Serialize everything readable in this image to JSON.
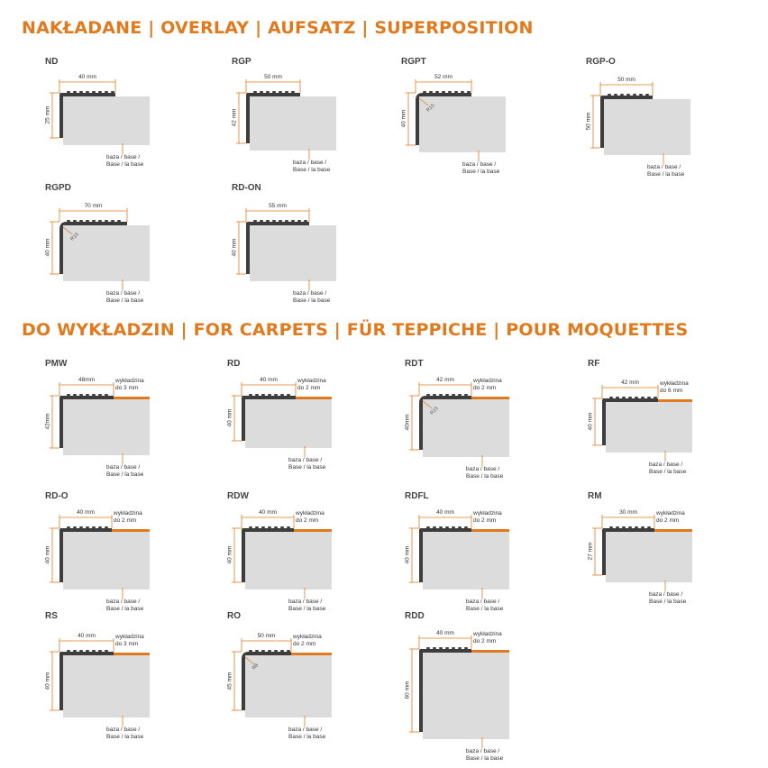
{
  "colors": {
    "accent": "#e07a1e",
    "profile": "#3d3d3d",
    "base": "#dcdcdc",
    "carpet": "#e07a1e"
  },
  "sections": {
    "overlay_title": "NAKŁADANE | OVERLAY | AUFSATZ | SUPERPOSITION",
    "carpets_title": "DO WYKŁADZIN | FOR CARPETS | FÜR TEPPICHE | POUR MOQUETTES"
  },
  "base_label": [
    "baza / base /",
    "Base / la base"
  ],
  "profiles": [
    {
      "code": "ND",
      "width": "40 mm",
      "height": "25 mm",
      "radius": "",
      "carpet": []
    },
    {
      "code": "RGP",
      "width": "50 mm",
      "height": "42 mm",
      "radius": "",
      "carpet": []
    },
    {
      "code": "RGPT",
      "width": "52 mm",
      "height": "40 mm",
      "radius": "R15",
      "carpet": []
    },
    {
      "code": "RGP-O",
      "width": "50 mm",
      "height": "50 mm",
      "radius": "",
      "carpet": []
    },
    {
      "code": "RGPD",
      "width": "70 mm",
      "height": "40 mm",
      "radius": "R15",
      "carpet": []
    },
    {
      "code": "RD-ON",
      "width": "55 mm",
      "height": "40 mm",
      "radius": "",
      "carpet": []
    },
    {
      "code": "PMW",
      "width": "48mm",
      "height": "42mm",
      "radius": "",
      "carpet": [
        "wykładzina",
        "do 3 mm"
      ]
    },
    {
      "code": "RD",
      "width": "40 mm",
      "height": "40 mm",
      "radius": "",
      "carpet": [
        "wykładzina",
        "do 2 mm"
      ]
    },
    {
      "code": "RDT",
      "width": "42 mm",
      "height": "40mm",
      "radius": "R15",
      "carpet": [
        "wykładzina",
        "do 2 mm"
      ]
    },
    {
      "code": "RF",
      "width": "42 mm",
      "height": "40 mm",
      "radius": "",
      "carpet": [
        "wykładzina",
        "do 6 mm"
      ]
    },
    {
      "code": "RD-O",
      "width": "40 mm",
      "height": "40 mm",
      "radius": "",
      "carpet": [
        "wykładzina",
        "do 2 mm"
      ]
    },
    {
      "code": "RDW",
      "width": "40 mm",
      "height": "40 mm",
      "radius": "",
      "carpet": [
        "wykładzina",
        "do 2 mm"
      ]
    },
    {
      "code": "RDFL",
      "width": "40 mm",
      "height": "40 mm",
      "radius": "",
      "carpet": [
        "wykładzina",
        "do 2 mm"
      ]
    },
    {
      "code": "RM",
      "width": "30 mm",
      "height": "27 mm",
      "radius": "",
      "carpet": [
        "wykładzina",
        "do 2 mm"
      ]
    },
    {
      "code": "RS",
      "width": "40 mm",
      "height": "40 mm",
      "radius": "",
      "carpet": [
        "wykładzina",
        "do 3 mm"
      ]
    },
    {
      "code": "RO",
      "width": "50 mm",
      "height": "45 mm",
      "radius": "R8",
      "carpet": [
        "wykładzina",
        "do 2 mm"
      ]
    },
    {
      "code": "RDD",
      "width": "40 mm",
      "height": "60 mm",
      "radius": "",
      "carpet": [
        "wykładzina",
        "do 2 mm"
      ]
    }
  ]
}
